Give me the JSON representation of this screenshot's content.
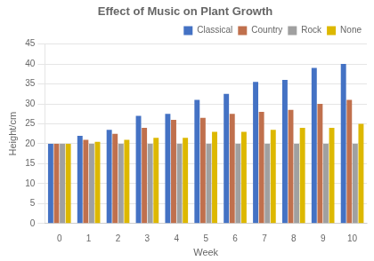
{
  "chart_data": {
    "type": "bar",
    "title": "Effect of Music on Plant Growth",
    "xlabel": "Week",
    "ylabel": "Height/cm",
    "categories": [
      "0",
      "1",
      "2",
      "3",
      "4",
      "5",
      "6",
      "7",
      "8",
      "9",
      "10"
    ],
    "series": [
      {
        "name": "Classical",
        "color": "#4472C4",
        "values": [
          20,
          22,
          23.5,
          27,
          27.5,
          31,
          32.5,
          35.5,
          36,
          39,
          40
        ]
      },
      {
        "name": "Country",
        "color": "#C0704D",
        "values": [
          20,
          21,
          22.5,
          24,
          26,
          26.5,
          27.5,
          28,
          28.5,
          30,
          31
        ]
      },
      {
        "name": "Rock",
        "color": "#A0A0A0",
        "values": [
          20,
          20,
          20,
          20,
          20,
          20,
          20,
          20,
          20,
          20,
          20
        ]
      },
      {
        "name": "None",
        "color": "#DDB800",
        "values": [
          20,
          20.5,
          21,
          21.5,
          21.5,
          23,
          23,
          23.5,
          24,
          24,
          25
        ]
      }
    ],
    "ylim": [
      0,
      45
    ],
    "yticks": [
      0,
      5,
      10,
      15,
      20,
      25,
      30,
      35,
      40,
      45
    ],
    "grid": true,
    "legend": "upper right"
  }
}
